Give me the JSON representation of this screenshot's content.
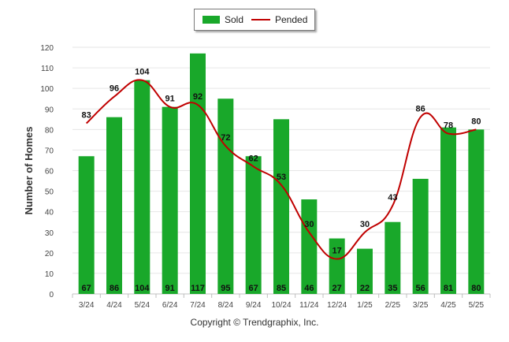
{
  "legend": {
    "sold_label": "Sold",
    "pended_label": "Pended"
  },
  "footer": {
    "copyright": "Copyright © Trendgraphix, Inc."
  },
  "colors": {
    "sold": "#19a82a",
    "pended": "#c00000",
    "grid": "#e6e6e6"
  },
  "chart_data": {
    "type": "bar",
    "title": "",
    "xlabel": "",
    "ylabel": "Number of Homes",
    "ylim": [
      0,
      120
    ],
    "yticks": [
      0,
      10,
      20,
      30,
      40,
      50,
      60,
      70,
      80,
      90,
      100,
      110,
      120
    ],
    "grid": true,
    "legend_position": "top-center",
    "categories": [
      "3/24",
      "4/24",
      "5/24",
      "6/24",
      "7/24",
      "8/24",
      "9/24",
      "10/24",
      "11/24",
      "12/24",
      "1/25",
      "2/25",
      "3/25",
      "4/25",
      "5/25"
    ],
    "series": [
      {
        "name": "Sold",
        "type": "bar",
        "values": [
          67,
          86,
          104,
          91,
          117,
          95,
          67,
          85,
          46,
          27,
          22,
          35,
          56,
          81,
          80
        ]
      },
      {
        "name": "Pended",
        "type": "line",
        "values": [
          83,
          96,
          104,
          91,
          92,
          72,
          62,
          53,
          30,
          17,
          30,
          43,
          86,
          78,
          80
        ]
      }
    ]
  }
}
